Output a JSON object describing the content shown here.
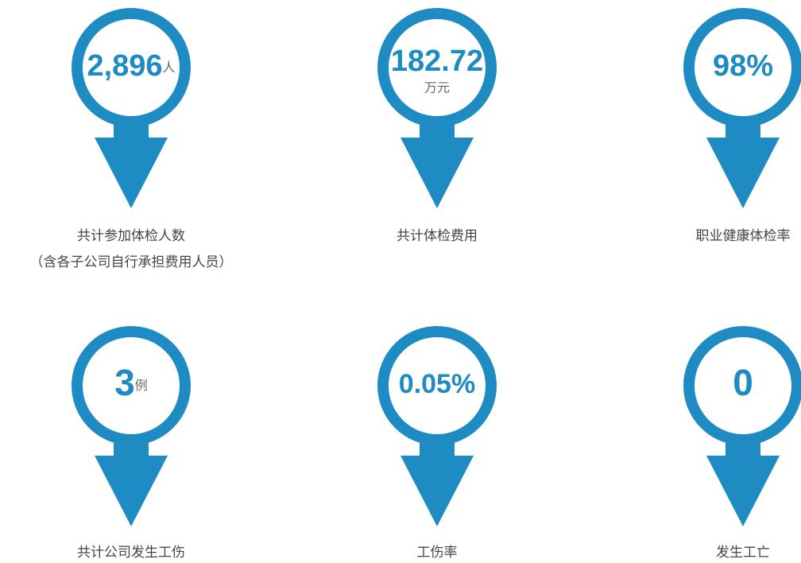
{
  "items": [
    {
      "value": "2,896",
      "unit": "人",
      "label": "共计参加体检人数",
      "note": "（含各子公司自行承担费用人员）"
    },
    {
      "value": "182.72",
      "unit": "万元",
      "label": "共计体检费用"
    },
    {
      "value": "98%",
      "label": "职业健康体检率"
    },
    {
      "value": "3",
      "unit": "例",
      "label": "共计公司发生工伤"
    },
    {
      "value": "0.05%",
      "label": "工伤率"
    },
    {
      "value": "0",
      "label": "发生工亡"
    }
  ]
}
